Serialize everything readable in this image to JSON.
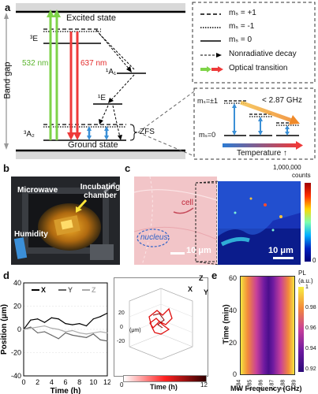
{
  "panel_a": {
    "label": "a",
    "band_gap": "Band gap",
    "excited_state": "Excited state",
    "ground_state": "Ground state",
    "level_3E": "³E",
    "level_1A1": "¹A₁",
    "level_1E": "¹E",
    "level_3A2": "³A₂",
    "zfs": "ZFS",
    "green_wavelength": "532 nm",
    "red_wavelength": "637 nm",
    "legend": {
      "ms_plus1": "mₛ = +1",
      "ms_minus1": "mₛ = -1",
      "ms_0": "mₛ = 0",
      "nonradiative": "Nonradiative decay",
      "optical": "Optical transition"
    },
    "inset": {
      "ms_pm1": "mₛ=±1",
      "ms_0": "mₛ=0",
      "freq": "< 2.87 GHz",
      "temperature": "Temperature ↑"
    }
  },
  "panel_b": {
    "label": "b",
    "microwave": "Microwave",
    "incubating_chamber": "Incubating chamber",
    "humidity": "Humidity"
  },
  "panel_c": {
    "label": "c",
    "cell": "cell",
    "nucleus": "nucleus",
    "scale_left": "10 μm",
    "scale_right": "10 μm",
    "colorbar_max": "1,000,000",
    "colorbar_unit": "counts",
    "colorbar_min": "0"
  },
  "panel_d": {
    "label": "d",
    "legend": [
      "X",
      "Y",
      "Z"
    ],
    "ylabel": "Position (μm)",
    "xlabel": "Time (h)",
    "yticks": [
      "40",
      "20",
      "0",
      "-20",
      "-40"
    ],
    "xticks": [
      "0",
      "2",
      "4",
      "6",
      "8",
      "10",
      "12"
    ],
    "axes3d": {
      "x": "X",
      "y": "Y",
      "z": "Z"
    },
    "cb_label": "Time (h)",
    "cb_min": "0",
    "cb_max": "12",
    "z_ticks": [
      "20",
      "0",
      "-20"
    ],
    "z_unit": "(μm)"
  },
  "panel_e": {
    "label": "e",
    "ylabel": "Time (min)",
    "xlabel": "MW Frequency (GHz)",
    "yticks": [
      "60",
      "40",
      "20",
      "0"
    ],
    "xticks": [
      "2.84",
      "2.85",
      "2.86",
      "2.87",
      "2.88",
      "2.89"
    ],
    "cb_title": "PL",
    "cb_unit": "(a.u.)",
    "cb_ticks": [
      "1",
      "0.98",
      "0.96",
      "0.94",
      "0.92"
    ]
  },
  "chart_data": [
    {
      "type": "line",
      "panel": "d",
      "x": [
        0,
        1,
        2,
        3,
        4,
        5,
        6,
        7,
        8,
        9,
        10,
        11,
        12
      ],
      "series": [
        {
          "name": "X",
          "color": "#000000",
          "values": [
            0,
            8,
            9,
            6,
            10,
            9,
            5,
            4,
            5,
            3,
            9,
            11,
            14
          ]
        },
        {
          "name": "Y",
          "color": "#666666",
          "values": [
            0,
            2,
            -3,
            -2,
            -5,
            -8,
            -3,
            -5,
            -6,
            -7,
            -4,
            -9,
            -10
          ]
        },
        {
          "name": "Z",
          "color": "#aaaaaa",
          "values": [
            0,
            1,
            2,
            3,
            1,
            0,
            -2,
            -1,
            -3,
            -4,
            -3,
            -2,
            -3
          ]
        }
      ],
      "xlim": [
        0,
        12
      ],
      "ylim": [
        -40,
        40
      ],
      "xlabel": "Time (h)",
      "ylabel": "Position (μm)"
    },
    {
      "type": "heatmap",
      "panel": "e",
      "xlabel": "MW Frequency (GHz)",
      "ylabel": "Time (min)",
      "xlim": [
        2.84,
        2.89
      ],
      "ylim": [
        0,
        60
      ],
      "clim": [
        0.92,
        1
      ]
    }
  ]
}
